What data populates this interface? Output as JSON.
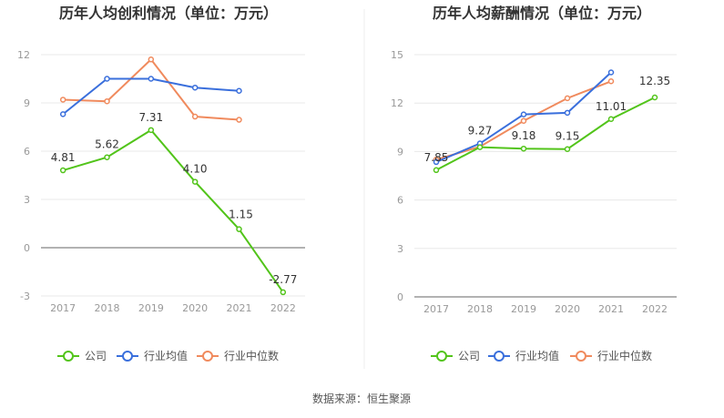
{
  "chart_data": [
    {
      "type": "line",
      "title": "历年人均创利情况（单位：万元）",
      "categories": [
        "2017",
        "2018",
        "2019",
        "2020",
        "2021",
        "2022"
      ],
      "ylim": [
        -3,
        12
      ],
      "yticks": [
        -3,
        0,
        3,
        6,
        9,
        12
      ],
      "grid": true,
      "legend_position": "bottom",
      "series": [
        {
          "name": "公司",
          "color": "#52c41a",
          "values": [
            4.81,
            5.62,
            7.31,
            4.1,
            1.15,
            -2.77
          ],
          "labels": [
            "4.81",
            "5.62",
            "7.31",
            "4.10",
            "1.15",
            "-2.77"
          ]
        },
        {
          "name": "行业均值",
          "color": "#3a6fdc",
          "values": [
            8.3,
            10.5,
            10.5,
            9.95,
            9.75,
            null
          ]
        },
        {
          "name": "行业中位数",
          "color": "#f08a5d",
          "values": [
            9.2,
            9.1,
            11.7,
            8.15,
            7.95,
            null
          ]
        }
      ]
    },
    {
      "type": "line",
      "title": "历年人均薪酬情况（单位：万元）",
      "categories": [
        "2017",
        "2018",
        "2019",
        "2020",
        "2021",
        "2022"
      ],
      "ylim": [
        0,
        15
      ],
      "yticks": [
        0,
        3,
        6,
        9,
        12,
        15
      ],
      "grid": true,
      "legend_position": "bottom",
      "series": [
        {
          "name": "公司",
          "color": "#52c41a",
          "values": [
            7.85,
            9.27,
            9.18,
            9.15,
            11.01,
            12.35
          ],
          "labels": [
            "7.85",
            "9.27",
            "9.18",
            "9.15",
            "11.01",
            "12.35"
          ]
        },
        {
          "name": "行业均值",
          "color": "#3a6fdc",
          "values": [
            8.35,
            9.5,
            11.3,
            11.4,
            13.9,
            null
          ]
        },
        {
          "name": "行业中位数",
          "color": "#f08a5d",
          "values": [
            8.5,
            9.3,
            10.9,
            12.3,
            13.35,
            null
          ]
        }
      ]
    }
  ],
  "footer": {
    "source": "数据来源：恒生聚源"
  }
}
